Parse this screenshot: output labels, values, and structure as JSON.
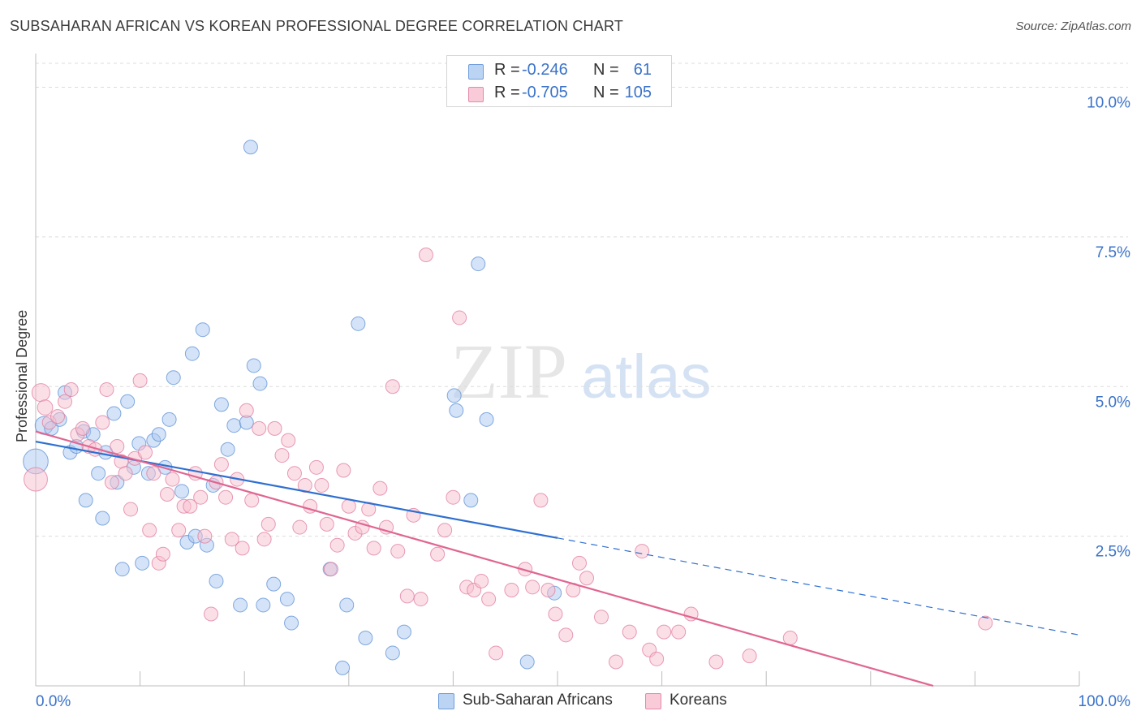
{
  "title": "SUBSAHARAN AFRICAN VS KOREAN PROFESSIONAL DEGREE CORRELATION CHART",
  "source": "Source: ZipAtlas.com",
  "watermark": {
    "zip": "ZIP",
    "atlas": "atlas"
  },
  "legend_top": [
    {
      "r_label": "R =",
      "r_value": "-0.246",
      "n_label": "N =",
      "n_value": "61"
    },
    {
      "r_label": "R =",
      "r_value": "-0.705",
      "n_label": "N =",
      "n_value": "105"
    }
  ],
  "colors": {
    "blue_fill": "#a9c8f0",
    "blue_stroke": "#5b8fd6",
    "blue_line": "#2f6fd0",
    "pink_fill": "#f7bfd0",
    "pink_stroke": "#e07b9e",
    "pink_line": "#e06692",
    "axis_text": "#3a73c9",
    "grid": "#dcdcdc"
  },
  "chart_data": {
    "type": "scatter",
    "title": "SUBSAHARAN AFRICAN VS KOREAN PROFESSIONAL DEGREE CORRELATION CHART",
    "xlabel": "",
    "ylabel": "Professional Degree",
    "x_tick_labels": [
      "0.0%",
      "100.0%"
    ],
    "y_tick_labels": [
      "2.5%",
      "5.0%",
      "7.5%",
      "10.0%"
    ],
    "y_ticks": [
      2.5,
      5.0,
      7.5,
      10.0
    ],
    "xlim": [
      0,
      100
    ],
    "ylim": [
      0,
      10.4
    ],
    "grid": true,
    "legend_position": "bottom-center",
    "series": [
      {
        "name": "Sub-Saharan Africans",
        "color": "#a9c8f0",
        "trend": {
          "x0": 0,
          "y0": 4.08,
          "x1": 50,
          "y1": 2.47,
          "dash_to_x": 100,
          "dash_to_y": 0.85
        },
        "points": [
          [
            0.0,
            3.75,
            1.8
          ],
          [
            0.8,
            4.35,
            1.3
          ],
          [
            1.5,
            4.3,
            1
          ],
          [
            2.3,
            4.45,
            1
          ],
          [
            2.8,
            4.9,
            1
          ],
          [
            3.3,
            3.9,
            1
          ],
          [
            3.9,
            4.0,
            1
          ],
          [
            4.6,
            4.25,
            1
          ],
          [
            5.5,
            4.2,
            1
          ],
          [
            4.8,
            3.1,
            1
          ],
          [
            6.0,
            3.55,
            1
          ],
          [
            6.4,
            2.8,
            1
          ],
          [
            6.7,
            3.9,
            1
          ],
          [
            7.5,
            4.55,
            1
          ],
          [
            7.8,
            3.4,
            1
          ],
          [
            8.3,
            1.95,
            1
          ],
          [
            8.8,
            4.75,
            1
          ],
          [
            9.4,
            3.65,
            1
          ],
          [
            9.9,
            4.05,
            1
          ],
          [
            10.2,
            2.05,
            1
          ],
          [
            10.8,
            3.55,
            1
          ],
          [
            11.3,
            4.1,
            1
          ],
          [
            11.8,
            4.2,
            1
          ],
          [
            12.4,
            3.65,
            1
          ],
          [
            12.8,
            4.45,
            1
          ],
          [
            13.2,
            5.15,
            1
          ],
          [
            14.0,
            3.25,
            1
          ],
          [
            14.5,
            2.4,
            1
          ],
          [
            15.0,
            5.55,
            1
          ],
          [
            15.3,
            2.5,
            1
          ],
          [
            16.0,
            5.95,
            1
          ],
          [
            16.4,
            2.35,
            1
          ],
          [
            17.0,
            3.35,
            1
          ],
          [
            17.3,
            1.75,
            1
          ],
          [
            17.8,
            4.7,
            1
          ],
          [
            18.4,
            3.95,
            1
          ],
          [
            19.0,
            4.35,
            1
          ],
          [
            19.6,
            1.35,
            1
          ],
          [
            20.2,
            4.4,
            1
          ],
          [
            20.6,
            9.0,
            1
          ],
          [
            20.9,
            5.35,
            1
          ],
          [
            21.5,
            5.05,
            1
          ],
          [
            21.8,
            1.35,
            1
          ],
          [
            22.8,
            1.7,
            1
          ],
          [
            24.1,
            1.45,
            1
          ],
          [
            24.5,
            1.05,
            1
          ],
          [
            28.2,
            1.95,
            1
          ],
          [
            29.4,
            0.3,
            1
          ],
          [
            29.8,
            1.35,
            1
          ],
          [
            30.9,
            6.05,
            1
          ],
          [
            31.6,
            0.8,
            1
          ],
          [
            34.2,
            0.55,
            1
          ],
          [
            35.3,
            0.9,
            1
          ],
          [
            40.1,
            4.85,
            1
          ],
          [
            40.3,
            4.6,
            1
          ],
          [
            41.7,
            3.1,
            1
          ],
          [
            42.4,
            7.05,
            1
          ],
          [
            43.2,
            4.45,
            1
          ],
          [
            47.1,
            0.4,
            1
          ],
          [
            49.7,
            1.55,
            1
          ]
        ]
      },
      {
        "name": "Koreans",
        "color": "#f7bfd0",
        "trend": {
          "x0": 0,
          "y0": 4.25,
          "x1": 86,
          "y1": 0.0
        },
        "points": [
          [
            0.0,
            3.45,
            1.7
          ],
          [
            0.5,
            4.9,
            1.3
          ],
          [
            0.9,
            4.65,
            1.1
          ],
          [
            1.3,
            4.4,
            1
          ],
          [
            2.1,
            4.5,
            1
          ],
          [
            2.8,
            4.75,
            1
          ],
          [
            3.4,
            4.95,
            1
          ],
          [
            4.0,
            4.2,
            1
          ],
          [
            4.5,
            4.3,
            1
          ],
          [
            5.1,
            4.0,
            1
          ],
          [
            5.7,
            3.95,
            1
          ],
          [
            6.4,
            4.4,
            1
          ],
          [
            6.8,
            4.95,
            1
          ],
          [
            7.3,
            3.4,
            1
          ],
          [
            7.8,
            4.0,
            1
          ],
          [
            8.2,
            3.75,
            1
          ],
          [
            8.6,
            3.55,
            1
          ],
          [
            9.1,
            2.95,
            1
          ],
          [
            9.5,
            3.8,
            1
          ],
          [
            10.0,
            5.1,
            1
          ],
          [
            10.5,
            3.9,
            1
          ],
          [
            10.9,
            2.6,
            1
          ],
          [
            11.3,
            3.55,
            1
          ],
          [
            11.8,
            2.05,
            1
          ],
          [
            12.2,
            2.2,
            1
          ],
          [
            12.6,
            3.2,
            1
          ],
          [
            13.1,
            3.45,
            1
          ],
          [
            13.7,
            2.6,
            1
          ],
          [
            14.2,
            3.0,
            1
          ],
          [
            14.8,
            3.0,
            1
          ],
          [
            15.3,
            3.55,
            1
          ],
          [
            15.8,
            3.15,
            1
          ],
          [
            16.2,
            2.5,
            1
          ],
          [
            16.8,
            1.2,
            1
          ],
          [
            17.3,
            3.4,
            1
          ],
          [
            17.8,
            3.7,
            1
          ],
          [
            18.2,
            3.15,
            1
          ],
          [
            18.8,
            2.45,
            1
          ],
          [
            19.3,
            3.45,
            1
          ],
          [
            19.8,
            2.3,
            1
          ],
          [
            20.2,
            4.6,
            1
          ],
          [
            20.7,
            3.1,
            1
          ],
          [
            21.4,
            4.3,
            1
          ],
          [
            21.9,
            2.45,
            1
          ],
          [
            22.3,
            2.7,
            1
          ],
          [
            22.9,
            4.3,
            1
          ],
          [
            23.6,
            3.85,
            1
          ],
          [
            24.2,
            4.1,
            1
          ],
          [
            24.8,
            3.55,
            1
          ],
          [
            25.3,
            2.65,
            1
          ],
          [
            25.8,
            3.35,
            1
          ],
          [
            26.3,
            3.0,
            1
          ],
          [
            26.9,
            3.65,
            1
          ],
          [
            27.4,
            3.35,
            1
          ],
          [
            27.9,
            2.7,
            1
          ],
          [
            28.3,
            1.95,
            1
          ],
          [
            28.9,
            2.35,
            1
          ],
          [
            29.5,
            3.6,
            1
          ],
          [
            30.0,
            3.0,
            1
          ],
          [
            30.6,
            2.55,
            1
          ],
          [
            31.3,
            2.65,
            1
          ],
          [
            31.9,
            2.95,
            1
          ],
          [
            32.4,
            2.3,
            1
          ],
          [
            33.0,
            3.3,
            1
          ],
          [
            33.6,
            2.65,
            1
          ],
          [
            34.2,
            5.0,
            1
          ],
          [
            34.7,
            2.25,
            1
          ],
          [
            35.6,
            1.5,
            1
          ],
          [
            36.2,
            2.85,
            1
          ],
          [
            36.9,
            1.45,
            1
          ],
          [
            37.4,
            7.2,
            1
          ],
          [
            38.5,
            2.2,
            1
          ],
          [
            39.2,
            2.6,
            1
          ],
          [
            40.0,
            3.15,
            1
          ],
          [
            40.6,
            6.15,
            1
          ],
          [
            41.3,
            1.65,
            1
          ],
          [
            42.0,
            1.6,
            1
          ],
          [
            42.7,
            1.75,
            1
          ],
          [
            43.4,
            1.45,
            1
          ],
          [
            44.1,
            0.55,
            1
          ],
          [
            45.6,
            1.6,
            1
          ],
          [
            46.9,
            1.95,
            1
          ],
          [
            47.6,
            1.65,
            1
          ],
          [
            48.4,
            3.1,
            1
          ],
          [
            49.1,
            1.6,
            1
          ],
          [
            49.8,
            1.2,
            1
          ],
          [
            50.8,
            0.85,
            1
          ],
          [
            51.5,
            1.6,
            1
          ],
          [
            52.1,
            2.05,
            1
          ],
          [
            52.8,
            1.8,
            1
          ],
          [
            54.2,
            1.15,
            1
          ],
          [
            55.6,
            0.4,
            1
          ],
          [
            56.9,
            0.9,
            1
          ],
          [
            58.1,
            2.25,
            1
          ],
          [
            58.8,
            0.6,
            1
          ],
          [
            59.5,
            0.45,
            1
          ],
          [
            60.2,
            0.9,
            1
          ],
          [
            61.6,
            0.9,
            1
          ],
          [
            62.8,
            1.2,
            1
          ],
          [
            65.2,
            0.4,
            1
          ],
          [
            68.4,
            0.5,
            1
          ],
          [
            72.3,
            0.8,
            1
          ],
          [
            91.0,
            1.05,
            1
          ]
        ]
      }
    ]
  },
  "legend_bottom": [
    {
      "label": "Sub-Saharan Africans"
    },
    {
      "label": "Koreans"
    }
  ]
}
